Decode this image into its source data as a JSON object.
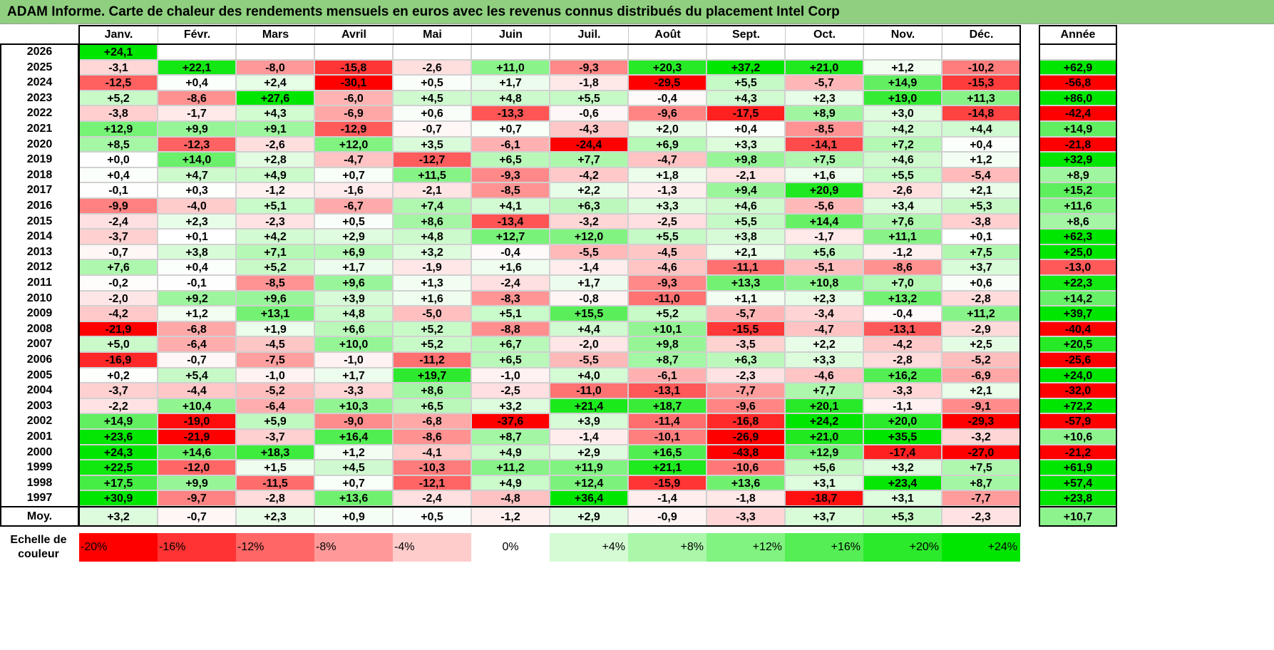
{
  "chart_data": {
    "type": "heatmap",
    "title": "ADAM Informe. Carte de chaleur des rendements mensuels en euros avec les revenus connus distribués du placement Intel Corp",
    "columns": [
      "Janv.",
      "Févr.",
      "Mars",
      "Avril",
      "Mai",
      "Juin",
      "Juil.",
      "Août",
      "Sept.",
      "Oct.",
      "Nov.",
      "Déc."
    ],
    "year_header": "Année",
    "rows": [
      {
        "year": "2026",
        "values": [
          "+24,1"
        ],
        "annual": ""
      },
      {
        "year": "2025",
        "values": [
          "-3,1",
          "+22,1",
          "-8,0",
          "-15,8",
          "-2,6",
          "+11,0",
          "-9,3",
          "+20,3",
          "+37,2",
          "+21,0",
          "+1,2",
          "-10,2"
        ],
        "annual": "+62,9"
      },
      {
        "year": "2024",
        "values": [
          "-12,5",
          "+0,4",
          "+2,4",
          "-30,1",
          "+0,5",
          "+1,7",
          "-1,8",
          "-29,5",
          "+5,5",
          "-5,7",
          "+14,9",
          "-15,3"
        ],
        "annual": "-56,8"
      },
      {
        "year": "2023",
        "values": [
          "+5,2",
          "-8,6",
          "+27,6",
          "-6,0",
          "+4,5",
          "+4,8",
          "+5,5",
          "-0,4",
          "+4,3",
          "+2,3",
          "+19,0",
          "+11,3"
        ],
        "annual": "+86,0"
      },
      {
        "year": "2022",
        "values": [
          "-3,8",
          "-1,7",
          "+4,3",
          "-6,9",
          "+0,6",
          "-13,3",
          "-0,6",
          "-9,6",
          "-17,5",
          "+8,9",
          "+3,0",
          "-14,8"
        ],
        "annual": "-42,4"
      },
      {
        "year": "2021",
        "values": [
          "+12,9",
          "+9,9",
          "+9,1",
          "-12,9",
          "-0,7",
          "+0,7",
          "-4,3",
          "+2,0",
          "+0,4",
          "-8,5",
          "+4,2",
          "+4,4"
        ],
        "annual": "+14,9"
      },
      {
        "year": "2020",
        "values": [
          "+8,5",
          "-12,3",
          "-2,6",
          "+12,0",
          "+3,5",
          "-6,1",
          "-24,4",
          "+6,9",
          "+3,3",
          "-14,1",
          "+7,2",
          "+0,4"
        ],
        "annual": "-21,8"
      },
      {
        "year": "2019",
        "values": [
          "+0,0",
          "+14,0",
          "+2,8",
          "-4,7",
          "-12,7",
          "+6,5",
          "+7,7",
          "-4,7",
          "+9,8",
          "+7,5",
          "+4,6",
          "+1,2"
        ],
        "annual": "+32,9"
      },
      {
        "year": "2018",
        "values": [
          "+0,4",
          "+4,7",
          "+4,9",
          "+0,7",
          "+11,5",
          "-9,3",
          "-4,2",
          "+1,8",
          "-2,1",
          "+1,6",
          "+5,5",
          "-5,4"
        ],
        "annual": "+8,9"
      },
      {
        "year": "2017",
        "values": [
          "-0,1",
          "+0,3",
          "-1,2",
          "-1,6",
          "-2,1",
          "-8,5",
          "+2,2",
          "-1,3",
          "+9,4",
          "+20,9",
          "-2,6",
          "+2,1"
        ],
        "annual": "+15,2"
      },
      {
        "year": "2016",
        "values": [
          "-9,9",
          "-4,0",
          "+5,1",
          "-6,7",
          "+7,4",
          "+4,1",
          "+6,3",
          "+3,3",
          "+4,6",
          "-5,6",
          "+3,4",
          "+5,3"
        ],
        "annual": "+11,6"
      },
      {
        "year": "2015",
        "values": [
          "-2,4",
          "+2,3",
          "-2,3",
          "+0,5",
          "+8,6",
          "-13,4",
          "-3,2",
          "-2,5",
          "+5,5",
          "+14,4",
          "+7,6",
          "-3,8"
        ],
        "annual": "+8,6"
      },
      {
        "year": "2014",
        "values": [
          "-3,7",
          "+0,1",
          "+4,2",
          "+2,9",
          "+4,8",
          "+12,7",
          "+12,0",
          "+5,5",
          "+3,8",
          "-1,7",
          "+11,1",
          "+0,1"
        ],
        "annual": "+62,3"
      },
      {
        "year": "2013",
        "values": [
          "-0,7",
          "+3,8",
          "+7,1",
          "+6,9",
          "+3,2",
          "-0,4",
          "-5,5",
          "-4,5",
          "+2,1",
          "+5,6",
          "-1,2",
          "+7,5"
        ],
        "annual": "+25,0"
      },
      {
        "year": "2012",
        "values": [
          "+7,6",
          "+0,4",
          "+5,2",
          "+1,7",
          "-1,9",
          "+1,6",
          "-1,4",
          "-4,6",
          "-11,1",
          "-5,1",
          "-8,6",
          "+3,7"
        ],
        "annual": "-13,0"
      },
      {
        "year": "2011",
        "values": [
          "-0,2",
          "-0,1",
          "-8,5",
          "+9,6",
          "+1,3",
          "-2,4",
          "+1,7",
          "-9,3",
          "+13,3",
          "+10,8",
          "+7,0",
          "+0,6"
        ],
        "annual": "+22,3"
      },
      {
        "year": "2010",
        "values": [
          "-2,0",
          "+9,2",
          "+9,6",
          "+3,9",
          "+1,6",
          "-8,3",
          "-0,8",
          "-11,0",
          "+1,1",
          "+2,3",
          "+13,2",
          "-2,8"
        ],
        "annual": "+14,2"
      },
      {
        "year": "2009",
        "values": [
          "-4,2",
          "+1,2",
          "+13,1",
          "+4,8",
          "-5,0",
          "+5,1",
          "+15,5",
          "+5,2",
          "-5,7",
          "-3,4",
          "-0,4",
          "+11,2"
        ],
        "annual": "+39,7"
      },
      {
        "year": "2008",
        "values": [
          "-21,9",
          "-6,8",
          "+1,9",
          "+6,6",
          "+5,2",
          "-8,8",
          "+4,4",
          "+10,1",
          "-15,5",
          "-4,7",
          "-13,1",
          "-2,9"
        ],
        "annual": "-40,4"
      },
      {
        "year": "2007",
        "values": [
          "+5,0",
          "-6,4",
          "-4,5",
          "+10,0",
          "+5,2",
          "+6,7",
          "-2,0",
          "+9,8",
          "-3,5",
          "+2,2",
          "-4,2",
          "+2,5"
        ],
        "annual": "+20,5"
      },
      {
        "year": "2006",
        "values": [
          "-16,9",
          "-0,7",
          "-7,5",
          "-1,0",
          "-11,2",
          "+6,5",
          "-5,5",
          "+8,7",
          "+6,3",
          "+3,3",
          "-2,8",
          "-5,2"
        ],
        "annual": "-25,6"
      },
      {
        "year": "2005",
        "values": [
          "+0,2",
          "+5,4",
          "-1,0",
          "+1,7",
          "+19,7",
          "-1,0",
          "+4,0",
          "-6,1",
          "-2,3",
          "-4,6",
          "+16,2",
          "-6,9"
        ],
        "annual": "+24,0"
      },
      {
        "year": "2004",
        "values": [
          "-3,7",
          "-4,4",
          "-5,2",
          "-3,3",
          "+8,6",
          "-2,5",
          "-11,0",
          "-13,1",
          "-7,7",
          "+7,7",
          "-3,3",
          "+2,1"
        ],
        "annual": "-32,0"
      },
      {
        "year": "2003",
        "values": [
          "-2,2",
          "+10,4",
          "-6,4",
          "+10,3",
          "+6,5",
          "+3,2",
          "+21,4",
          "+18,7",
          "-9,6",
          "+20,1",
          "-1,1",
          "-9,1"
        ],
        "annual": "+72,2"
      },
      {
        "year": "2002",
        "values": [
          "+14,9",
          "-19,0",
          "+5,9",
          "-9,0",
          "-6,8",
          "-37,6",
          "+3,9",
          "-11,4",
          "-16,8",
          "+24,2",
          "+20,0",
          "-29,3"
        ],
        "annual": "-57,9"
      },
      {
        "year": "2001",
        "values": [
          "+23,6",
          "-21,9",
          "-3,7",
          "+16,4",
          "-8,6",
          "+8,7",
          "-1,4",
          "-10,1",
          "-26,9",
          "+21,0",
          "+35,5",
          "-3,2"
        ],
        "annual": "+10,6"
      },
      {
        "year": "2000",
        "values": [
          "+24,3",
          "+14,6",
          "+18,3",
          "+1,2",
          "-4,1",
          "+4,9",
          "+2,9",
          "+16,5",
          "-43,8",
          "+12,9",
          "-17,4",
          "-27,0"
        ],
        "annual": "-21,2"
      },
      {
        "year": "1999",
        "values": [
          "+22,5",
          "-12,0",
          "+1,5",
          "+4,5",
          "-10,3",
          "+11,2",
          "+11,9",
          "+21,1",
          "-10,6",
          "+5,6",
          "+3,2",
          "+7,5"
        ],
        "annual": "+61,9"
      },
      {
        "year": "1998",
        "values": [
          "+17,5",
          "+9,9",
          "-11,5",
          "+0,7",
          "-12,1",
          "+4,9",
          "+12,4",
          "-15,9",
          "+13,6",
          "+3,1",
          "+23,4",
          "+8,7"
        ],
        "annual": "+57,4"
      },
      {
        "year": "1997",
        "values": [
          "+30,9",
          "-9,7",
          "-2,8",
          "+13,6",
          "-2,4",
          "-4,8",
          "+36,4",
          "-1,4",
          "-1,8",
          "-18,7",
          "+3,1",
          "-7,7"
        ],
        "annual": "+23,8"
      }
    ],
    "average": {
      "label": "Moy.",
      "values": [
        "+3,2",
        "-0,7",
        "+2,3",
        "+0,9",
        "+0,5",
        "-1,2",
        "+2,9",
        "-0,9",
        "-3,3",
        "+3,7",
        "+5,3",
        "-2,3"
      ],
      "annual": "+10,7"
    },
    "legend": {
      "label": "Echelle de couleur",
      "stops": [
        "-20%",
        "-16%",
        "-12%",
        "-8%",
        "-4%",
        "0%",
        "+4%",
        "+8%",
        "+12%",
        "+16%",
        "+20%",
        "+24%"
      ]
    },
    "color_scale": {
      "negative": "#ff0000",
      "zero": "#ffffff",
      "positive": "#00e600",
      "min": -20,
      "max": 24
    }
  }
}
